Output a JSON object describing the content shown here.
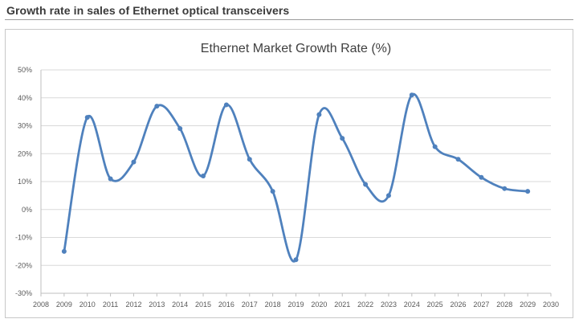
{
  "heading": "Growth rate in sales of Ethernet optical transceivers",
  "chart_data": {
    "type": "line",
    "title": "Ethernet Market Growth Rate (%)",
    "xlabel": "",
    "ylabel": "",
    "x_ticks": [
      "2008",
      "2009",
      "2010",
      "2011",
      "2012",
      "2013",
      "2014",
      "2015",
      "2016",
      "2017",
      "2018",
      "2019",
      "2020",
      "2021",
      "2022",
      "2023",
      "2024",
      "2025",
      "2026",
      "2027",
      "2028",
      "2029",
      "2030"
    ],
    "y_ticks": [
      "50%",
      "40%",
      "30%",
      "20%",
      "10%",
      "0%",
      "-10%",
      "-20%",
      "-30%"
    ],
    "xlim": [
      2008,
      2030
    ],
    "ylim": [
      -30,
      50
    ],
    "grid": true,
    "line_color": "#4f81bd",
    "series": [
      {
        "x": [
          2009,
          2010,
          2011,
          2012,
          2013,
          2014,
          2015,
          2016,
          2017,
          2018,
          2019,
          2020,
          2021,
          2022,
          2023,
          2024,
          2025,
          2026,
          2027,
          2028,
          2029
        ],
        "values": [
          -15,
          33,
          11,
          17,
          37,
          29,
          12,
          37.5,
          18,
          6.5,
          -18,
          34,
          25.5,
          9,
          5,
          41,
          22.5,
          18,
          11.5,
          7.5,
          6.5
        ]
      }
    ]
  }
}
